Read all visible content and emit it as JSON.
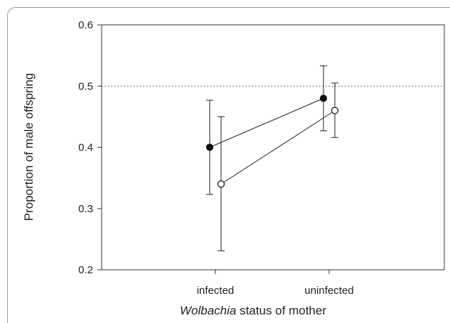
{
  "chart_data": {
    "type": "scatter",
    "title": "",
    "xlabel_italic": "Wolbachia",
    "xlabel_rest": " status of mother",
    "ylabel": "Proportion of male offspring",
    "categories": [
      "infected",
      "uninfected"
    ],
    "ylim": [
      0.2,
      0.6
    ],
    "yticks": [
      "0.2",
      "0.3",
      "0.4",
      "0.5",
      "0.6"
    ],
    "reference_line": 0.5,
    "grid": false,
    "series": [
      {
        "marker": "filled-circle",
        "values": [
          0.4,
          0.48
        ],
        "err_low": [
          0.323,
          0.427
        ],
        "err_high": [
          0.477,
          0.533
        ]
      },
      {
        "marker": "open-circle",
        "values": [
          0.34,
          0.46
        ],
        "err_low": [
          0.231,
          0.416
        ],
        "err_high": [
          0.45,
          0.505
        ]
      }
    ]
  }
}
